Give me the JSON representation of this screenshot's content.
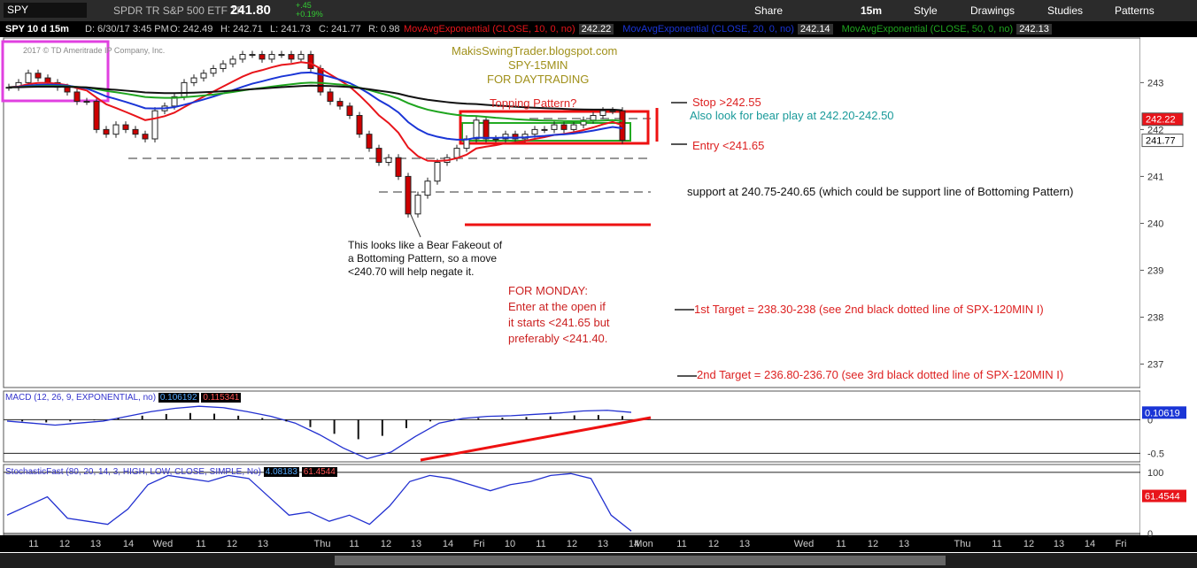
{
  "toolbar": {
    "symbol": "SPY",
    "name": "SPDR TR S&P 500 ETF TR",
    "last": "241.80",
    "change": "+.45",
    "change_pct": "+0.19%",
    "share": "Share",
    "interval": "15m",
    "style": "Style",
    "drawings": "Drawings",
    "studies": "Studies",
    "patterns": "Patterns"
  },
  "info": {
    "chart": "SPY 10 d 15m",
    "date": "D: 6/30/17 3:45 PM",
    "open": "O: 242.49",
    "high": "H: 242.71",
    "low": "L: 241.73",
    "close": "C: 241.77",
    "range": "R: 0.98",
    "ma": [
      {
        "label": "MovAvgExponential (CLOSE, 10, 0, no)",
        "value": "242.22",
        "color": "#e8141a",
        "length": 10
      },
      {
        "label": "MovAvgExponential (CLOSE, 20, 0, no)",
        "value": "242.14",
        "color": "#1a35d6",
        "length": 20
      },
      {
        "label": "MovAvgExponential (CLOSE, 50, 0, no)",
        "value": "242.13",
        "color": "#1fa51f",
        "length": 50
      }
    ]
  },
  "watermark": "2017 © TD Ameritrade IP Company, Inc.",
  "price": {
    "ylim": [
      236.5,
      243.95
    ],
    "yticks": [
      237,
      238,
      239,
      240,
      241,
      242,
      243
    ],
    "ma_box": "242.22",
    "last_box": "241.77",
    "close": [
      242.9,
      243.0,
      243.2,
      243.1,
      243.0,
      242.9,
      242.8,
      242.6,
      242.6,
      242.0,
      241.9,
      242.1,
      242.0,
      241.9,
      241.8,
      242.4,
      242.5,
      242.7,
      243.0,
      243.1,
      243.2,
      243.3,
      243.4,
      243.5,
      243.6,
      243.6,
      243.5,
      243.6,
      243.6,
      243.5,
      243.6,
      243.3,
      242.8,
      242.6,
      242.5,
      242.3,
      241.9,
      241.6,
      241.3,
      241.4,
      241.0,
      240.2,
      240.6,
      240.9,
      241.3,
      241.4,
      241.6,
      241.8,
      242.2,
      241.8,
      241.8,
      241.9,
      241.8,
      241.9,
      242.0,
      242.0,
      242.1,
      242.0,
      242.1,
      242.2,
      242.3,
      242.4,
      242.4,
      241.77
    ]
  },
  "annotations": {
    "blog": "MakisSwingTrader.blogspot.com",
    "tf": "SPY-15MIN",
    "purpose": "FOR DAYTRADING",
    "topping": "Topping Pattern?",
    "stop": "Stop >242.55",
    "bear": "Also look for bear play at 242.20-242.50",
    "entry": "Entry <241.65",
    "support": "support at 240.75-240.65 (which could be support line of Bottoming Pattern)",
    "fakeout": [
      "This looks like a Bear Fakeout of",
      "a Bottoming Pattern, so a move",
      "<240.70 will help negate it."
    ],
    "monday": [
      "FOR MONDAY:",
      "Enter at the open if",
      "it starts <241.65 but",
      "preferably <241.40."
    ],
    "target1": "1st Target = 238.30-238 (see 2nd black dotted line of SPX-120MIN I)",
    "target2": "2nd Target = 236.80-236.70 (see 3rd black dotted line of SPX-120MIN I)"
  },
  "macd": {
    "label": "MACD (12, 26, 9, EXPONENTIAL, no)",
    "value": "0.106192",
    "avg": "0.115341",
    "box": "0.10619",
    "ylim": [
      -0.6,
      0.4
    ],
    "yticks": [
      0,
      -0.5
    ],
    "values": [
      -0.02,
      -0.05,
      -0.08,
      -0.05,
      -0.02,
      0.05,
      0.12,
      0.17,
      0.2,
      0.18,
      0.12,
      0.05,
      -0.05,
      -0.22,
      -0.42,
      -0.58,
      -0.48,
      -0.25,
      -0.05,
      0.02,
      0.05,
      0.06,
      0.08,
      0.1,
      0.13,
      0.14,
      0.11
    ]
  },
  "stoch": {
    "label": "StochasticFast (80, 20, 14, 3, HIGH, LOW, CLOSE, SIMPLE, No)",
    "k": "4.08183",
    "d": "61.4544",
    "box": "61.4544",
    "ylim": [
      0,
      110
    ],
    "yticks": [
      100,
      0
    ],
    "values": [
      30,
      45,
      60,
      25,
      20,
      15,
      40,
      80,
      95,
      90,
      85,
      95,
      90,
      60,
      30,
      35,
      20,
      30,
      15,
      45,
      85,
      95,
      90,
      80,
      70,
      80,
      85,
      95,
      98,
      90,
      30,
      4
    ]
  },
  "time_axis": [
    "11",
    "12",
    "13",
    "14",
    "Wed",
    "11",
    "12",
    "13",
    "Thu",
    "11",
    "12",
    "13",
    "14",
    "Fri",
    "10",
    "11",
    "12",
    "13",
    "14",
    "Mon",
    "11",
    "12",
    "13",
    "Wed",
    "11",
    "12",
    "13",
    "Thu",
    "11",
    "12",
    "13",
    "14",
    "Fri"
  ]
}
